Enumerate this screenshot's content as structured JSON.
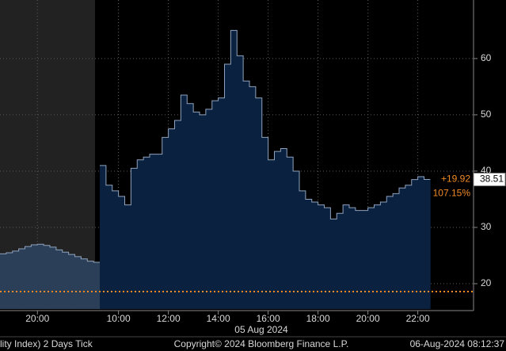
{
  "chart_data": {
    "type": "area",
    "x": [
      "18:30",
      "18:45",
      "19:00",
      "19:15",
      "19:30",
      "19:45",
      "20:00",
      "20:15",
      "20:30",
      "20:45",
      "21:00",
      "21:15",
      "21:30",
      "21:45",
      "22:00",
      "22:15",
      "09:15",
      "09:30",
      "09:45",
      "10:00",
      "10:15",
      "10:30",
      "10:45",
      "11:00",
      "11:15",
      "11:30",
      "11:45",
      "12:00",
      "12:15",
      "12:30",
      "12:45",
      "13:00",
      "13:15",
      "13:30",
      "13:45",
      "14:00",
      "14:15",
      "14:30",
      "14:45",
      "15:00",
      "15:15",
      "15:30",
      "15:45",
      "16:00",
      "16:15",
      "16:30",
      "16:45",
      "17:00",
      "17:15",
      "17:30",
      "17:45",
      "18:00",
      "18:15",
      "18:30",
      "18:45",
      "19:00",
      "19:15",
      "19:30",
      "19:45",
      "20:00",
      "20:15",
      "20:30",
      "20:45",
      "21:00",
      "21:15",
      "21:30",
      "21:45",
      "22:00",
      "22:15"
    ],
    "values": [
      25.3,
      25.5,
      25.8,
      26.2,
      26.6,
      26.9,
      27.0,
      26.8,
      26.5,
      26.0,
      25.6,
      25.2,
      24.8,
      24.4,
      24.0,
      23.8,
      41.0,
      37.5,
      36.5,
      35.5,
      34.0,
      40.5,
      42.0,
      42.5,
      43.0,
      43.0,
      46.0,
      47.5,
      49.0,
      53.5,
      52.0,
      50.5,
      50.0,
      51.0,
      52.5,
      53.0,
      59.0,
      65.0,
      60.5,
      56.0,
      55.0,
      53.0,
      46.0,
      42.0,
      43.5,
      44.0,
      42.5,
      40.0,
      36.5,
      35.0,
      34.5,
      34.0,
      33.5,
      31.5,
      32.5,
      34.0,
      33.5,
      33.0,
      33.0,
      33.5,
      34.0,
      34.5,
      35.5,
      36.0,
      37.0,
      37.5,
      38.5,
      39.0,
      38.51
    ],
    "ylim": [
      15.5,
      70.4
    ],
    "yticks": [
      20,
      30,
      40,
      50,
      60
    ],
    "xticks": [
      "20:00",
      "10:00",
      "12:00",
      "14:00",
      "16:00",
      "18:00",
      "20:00",
      "22:00"
    ],
    "date_label": "05 Aug 2024",
    "reference_line": 18.6,
    "last_value_label": "38.51",
    "change_label": "+19.92",
    "change_pct_label": "107.15%",
    "footer_left": "lity Index) 2 Days  Tick",
    "footer_center": "Copyright© 2024 Bloomberg Finance L.P.",
    "footer_right": "06-Aug-2024 08:12:37",
    "grid": true
  }
}
